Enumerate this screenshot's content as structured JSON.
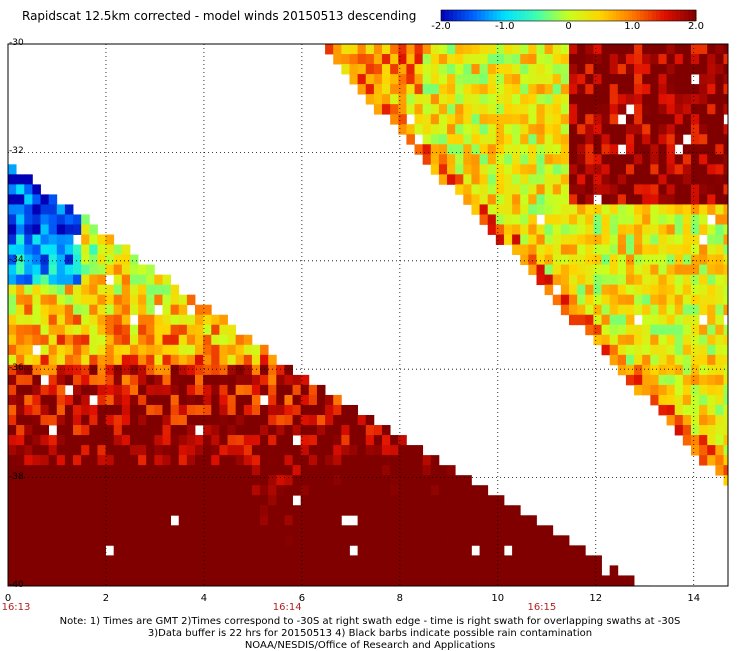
{
  "title": "Rapidscat 12.5km corrected - model winds 20150513 descending",
  "colorbar": {
    "ticks": [
      "-2.0",
      "-1.0",
      "0",
      "1.0",
      "2.0"
    ],
    "range": [
      -2.0,
      2.0
    ],
    "colors": [
      "#0000b4",
      "#0060ff",
      "#00e0ff",
      "#40ffb0",
      "#c8ff20",
      "#ffd400",
      "#ff7a00",
      "#e01000",
      "#800000"
    ]
  },
  "y_ticks": [
    "-30",
    "-32",
    "-34",
    "-36",
    "-38",
    "-40"
  ],
  "x_ticks": [
    "0",
    "2",
    "4",
    "6",
    "8",
    "10",
    "12",
    "14"
  ],
  "time_labels": [
    {
      "text": "16:13",
      "x": 0
    },
    {
      "text": "16:14",
      "x": 5.7
    },
    {
      "text": "16:15",
      "x": 10.9
    }
  ],
  "notes": [
    "Note: 1) Times are GMT 2)Times correspond to -30S at right swath edge - time is right swath for overlapping swaths at -30S",
    "3)Data buffer is 22 hrs for 20150513 4) Black barbs indicate possible rain contamination",
    "NOAA/NESDIS/Office of Research and Applications"
  ],
  "chart_data": {
    "type": "heatmap",
    "title": "Rapidscat 12.5km corrected - model winds 20150513 descending",
    "xlim": [
      0,
      14.7
    ],
    "ylim": [
      -40,
      -30
    ],
    "x_ticks": [
      0,
      2,
      4,
      6,
      8,
      10,
      12,
      14
    ],
    "y_ticks": [
      -30,
      -32,
      -34,
      -36,
      -38,
      -40
    ],
    "color_range": [
      -2.0,
      2.0
    ],
    "grid": true,
    "colorbar_placement": "top-right",
    "swaths": [
      {
        "name": "",
        "edge": [
          [
            0,
            -32.2
          ],
          [
            5.8,
            -36.0
          ],
          [
            12.9,
            -40.0
          ]
        ],
        "covers": "below-left"
      },
      {
        "name": "",
        "edge": [
          [
            6.3,
            -30.0
          ],
          [
            14.5,
            -38.0
          ]
        ],
        "covers": "above-right"
      }
    ],
    "features": [
      {
        "description": "strong positive band",
        "x_range": [
          8.3,
          14.6
        ],
        "y_range": [
          -31.5,
          -36.5
        ],
        "value": 2.0
      },
      {
        "description": "positive region",
        "x_range": [
          0,
          5
        ],
        "y_range": [
          -36,
          -40
        ],
        "value": 1.5
      }
    ]
  }
}
